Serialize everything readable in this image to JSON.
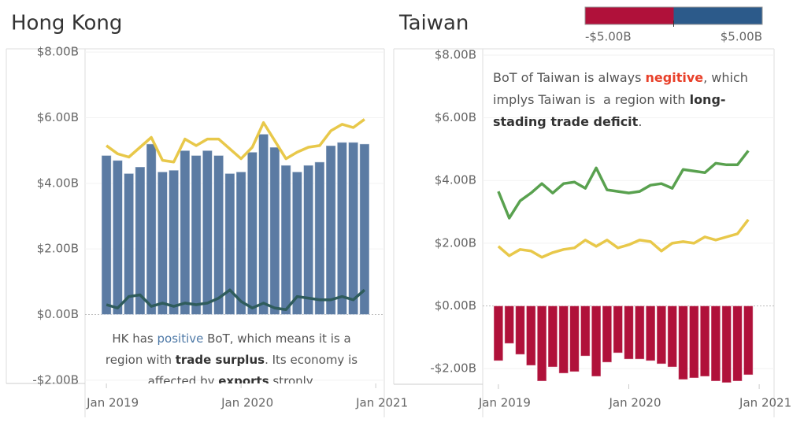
{
  "chart_data": [
    {
      "type": "bar_line",
      "title": "Hong Kong",
      "categories": [
        "Jan 2019",
        null,
        null,
        null,
        null,
        null,
        null,
        null,
        null,
        null,
        null,
        null,
        "Jan 2020",
        null,
        null,
        null,
        null,
        null,
        null,
        null,
        null,
        null,
        null,
        null,
        "Jan 2021"
      ],
      "series": [
        {
          "type": "bar",
          "color": "#5b7ba3",
          "values": [
            4.85,
            4.7,
            4.3,
            4.5,
            5.2,
            4.35,
            4.4,
            5.0,
            4.85,
            5.0,
            4.85,
            4.3,
            4.35,
            4.95,
            5.5,
            5.1,
            4.55,
            4.35,
            4.55,
            4.65,
            5.15,
            5.25,
            5.25,
            5.2,
            null
          ]
        },
        {
          "type": "line",
          "color": "#e8c84a",
          "values": [
            5.15,
            4.9,
            4.8,
            5.1,
            5.4,
            4.7,
            4.65,
            5.35,
            5.15,
            5.35,
            5.35,
            5.05,
            4.75,
            5.1,
            5.85,
            5.3,
            4.75,
            4.95,
            5.1,
            5.15,
            5.6,
            5.8,
            5.7,
            5.95,
            null
          ]
        },
        {
          "type": "line",
          "color": "#2f5c5c",
          "values": [
            0.3,
            0.2,
            0.55,
            0.6,
            0.25,
            0.35,
            0.25,
            0.35,
            0.3,
            0.35,
            0.5,
            0.75,
            0.4,
            0.2,
            0.35,
            0.2,
            0.15,
            0.55,
            0.5,
            0.45,
            0.45,
            0.55,
            0.45,
            0.75,
            null
          ]
        }
      ],
      "ylim": [
        -2.1,
        8.1
      ],
      "yticks": [
        {
          "value": 8,
          "label": "$8.00B"
        },
        {
          "value": 6,
          "label": "$6.00B"
        },
        {
          "value": 4,
          "label": "$4.00B"
        },
        {
          "value": 2,
          "label": "$2.00B"
        },
        {
          "value": 0,
          "label": "$0.00B"
        },
        {
          "value": -2,
          "label": "-$2.00B"
        }
      ],
      "annotation": [
        {
          "text": "HK has "
        },
        {
          "text": "positive",
          "color": "#4e79a7"
        },
        {
          "text": " BoT, which means it is a region with "
        },
        {
          "text": "trade surplus",
          "bold": true
        },
        {
          "text": ". Its economy is affected by "
        },
        {
          "text": "exports",
          "bold": true
        },
        {
          "text": " stronly."
        }
      ]
    },
    {
      "type": "bar_line",
      "title": "Taiwan",
      "categories": [
        "Jan 2019",
        null,
        null,
        null,
        null,
        null,
        null,
        null,
        null,
        null,
        null,
        null,
        "Jan 2020",
        null,
        null,
        null,
        null,
        null,
        null,
        null,
        null,
        null,
        null,
        null,
        "Jan 2021"
      ],
      "series": [
        {
          "type": "bar",
          "color": "#b0113a",
          "values": [
            -1.75,
            -1.2,
            -1.55,
            -1.9,
            -2.4,
            -1.95,
            -2.15,
            -2.1,
            -1.6,
            -2.25,
            -1.8,
            -1.5,
            -1.7,
            -1.7,
            -1.75,
            -1.85,
            -1.95,
            -2.35,
            -2.3,
            -2.25,
            -2.4,
            -2.45,
            -2.4,
            -2.2,
            null
          ]
        },
        {
          "type": "line",
          "color": "#e8c84a",
          "values": [
            1.9,
            1.6,
            1.8,
            1.75,
            1.55,
            1.7,
            1.8,
            1.85,
            2.1,
            1.9,
            2.1,
            1.85,
            1.95,
            2.1,
            2.05,
            1.75,
            2.0,
            2.05,
            2.0,
            2.2,
            2.1,
            2.2,
            2.3,
            2.75,
            null
          ]
        },
        {
          "type": "line",
          "color": "#59a14f",
          "values": [
            3.65,
            2.8,
            3.35,
            3.6,
            3.9,
            3.6,
            3.9,
            3.95,
            3.75,
            4.4,
            3.7,
            3.65,
            3.6,
            3.65,
            3.85,
            3.9,
            3.75,
            4.35,
            4.3,
            4.25,
            4.55,
            4.5,
            4.5,
            4.95,
            null
          ]
        }
      ],
      "ylim": [
        -2.5,
        8.2
      ],
      "yticks": [
        {
          "value": 8,
          "label": "$8.00B"
        },
        {
          "value": 6,
          "label": "$6.00B"
        },
        {
          "value": 4,
          "label": "$4.00B"
        },
        {
          "value": 2,
          "label": "$2.00B"
        },
        {
          "value": 0,
          "label": "$0.00B"
        },
        {
          "value": -2,
          "label": "-$2.00B"
        }
      ],
      "annotation": [
        {
          "text": "BoT of Taiwan is always "
        },
        {
          "text": "negitive",
          "color": "#e8402a",
          "bold": true
        },
        {
          "text": ", which implys Taiwan is  a region with "
        },
        {
          "text": "long-stading trade deficit",
          "bold": true
        },
        {
          "text": "."
        }
      ]
    }
  ],
  "color_legend": {
    "colors": [
      "#b0113a",
      "#2c5a8a"
    ],
    "ticks": [
      {
        "value": -5,
        "label": "-$5.00B"
      },
      {
        "value": 5,
        "label": "$5.00B"
      }
    ]
  }
}
